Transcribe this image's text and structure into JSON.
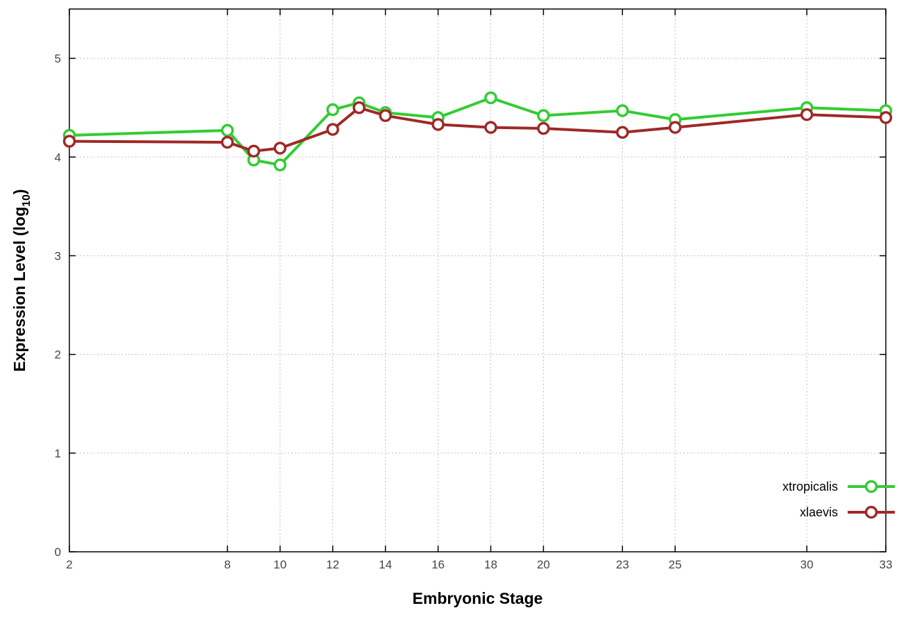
{
  "chart_data": {
    "type": "line",
    "title": "",
    "xlabel": "Embryonic Stage",
    "ylabel": "Expression Level (log10)",
    "ylabel_parts": {
      "main": "Expression Level (log",
      "sub": "10",
      "close": ")"
    },
    "x": [
      2,
      8,
      9,
      10,
      12,
      13,
      14,
      16,
      18,
      20,
      23,
      25,
      30,
      33
    ],
    "series": [
      {
        "name": "xtropicalis",
        "color": "#33cc33",
        "values": [
          4.22,
          4.27,
          3.97,
          3.92,
          4.48,
          4.55,
          4.45,
          4.4,
          4.6,
          4.42,
          4.47,
          4.38,
          4.5,
          4.47
        ]
      },
      {
        "name": "xlaevis",
        "color": "#a02828",
        "values": [
          4.16,
          4.15,
          4.06,
          4.09,
          4.28,
          4.5,
          4.42,
          4.33,
          4.3,
          4.29,
          4.25,
          4.3,
          4.43,
          4.4
        ]
      }
    ],
    "xticks": [
      2,
      8,
      10,
      12,
      14,
      16,
      18,
      20,
      23,
      25,
      30,
      33
    ],
    "yticks": [
      0,
      1,
      2,
      3,
      4,
      5
    ],
    "xlim": [
      2,
      33
    ],
    "ylim": [
      0,
      5.5
    ],
    "grid": true,
    "grid_color": "#c0c0c0",
    "border_color": "#000000",
    "legend": {
      "position": "bottom-right"
    }
  }
}
